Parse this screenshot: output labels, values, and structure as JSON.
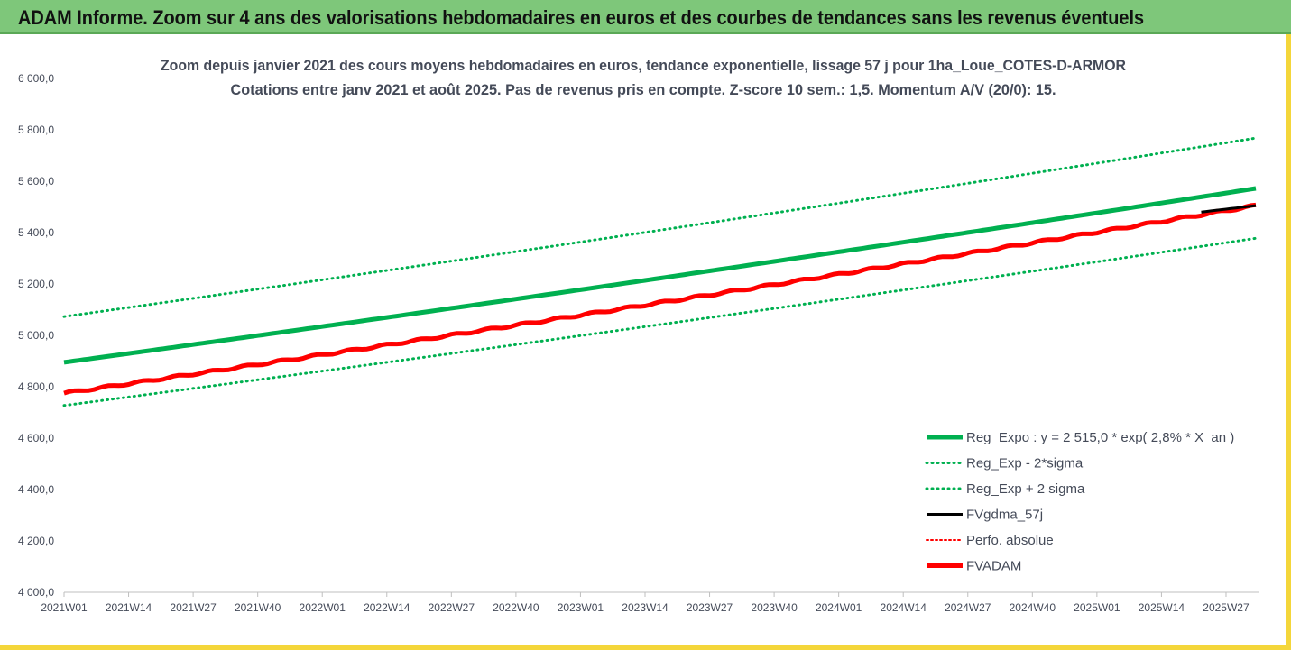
{
  "banner": {
    "title": "ADAM Informe. Zoom sur 4 ans des valorisations hebdomadaires en euros et des courbes de tendances sans les revenus éventuels"
  },
  "colors": {
    "banner_bg": "#7ec77a",
    "frame": "#f4d63a",
    "reg_expo": "#00b050",
    "fvadam": "#ff0000",
    "fvgdma": "#000000",
    "text": "#444a58"
  },
  "chart_data": {
    "type": "line",
    "title": [
      "Zoom depuis janvier 2021 des cours moyens hebdomadaires en euros, tendance exponentielle, lissage 57 j pour 1ha_Loue_COTES-D-ARMOR",
      "Cotations entre janv 2021 et août 2025. Pas de revenus pris en compte. Z-score 10 sem.: 1,5. Momentum A/V (20/0): 15."
    ],
    "xlabel": "",
    "ylabel": "",
    "ylim": [
      4000,
      6000
    ],
    "yticks": [
      "6 000,0",
      "5 800,0",
      "5 600,0",
      "5 400,0",
      "5 200,0",
      "5 000,0",
      "4 800,0",
      "4 600,0",
      "4 400,0",
      "4 200,0",
      "4 000,0"
    ],
    "x_weeks_total": 241,
    "xticks": [
      "2021W01",
      "2021W14",
      "2021W27",
      "2021W40",
      "2022W01",
      "2022W14",
      "2022W27",
      "2022W40",
      "2023W01",
      "2023W14",
      "2023W27",
      "2023W40",
      "2024W01",
      "2024W14",
      "2024W27",
      "2024W40",
      "2025W01",
      "2025W14",
      "2025W27"
    ],
    "grid": false,
    "legend_position": "bottom-right",
    "series": [
      {
        "name": "Reg_Expo : y = 2 515,0 * exp( 2,8% *  X_an )",
        "style": "solid-thick",
        "color": "#00b050",
        "start": 4895,
        "end": 5572
      },
      {
        "name": "Reg_Exp - 2*sigma",
        "style": "dotted",
        "color": "#00b050",
        "start": 4727,
        "end": 5378
      },
      {
        "name": "Reg_Exp + 2 sigma",
        "style": "dotted",
        "color": "#00b050",
        "start": 5073,
        "end": 5768
      },
      {
        "name": "FVgdma_57j",
        "style": "solid",
        "color": "#000000",
        "start": 5480,
        "end": 5505
      },
      {
        "name": "Perfo. absolue",
        "style": "dotted",
        "color": "#ff0000",
        "start": null,
        "end": null
      },
      {
        "name": "FVADAM",
        "style": "solid-thick",
        "color": "#ff0000",
        "start": 4775,
        "end": 5505
      }
    ]
  }
}
